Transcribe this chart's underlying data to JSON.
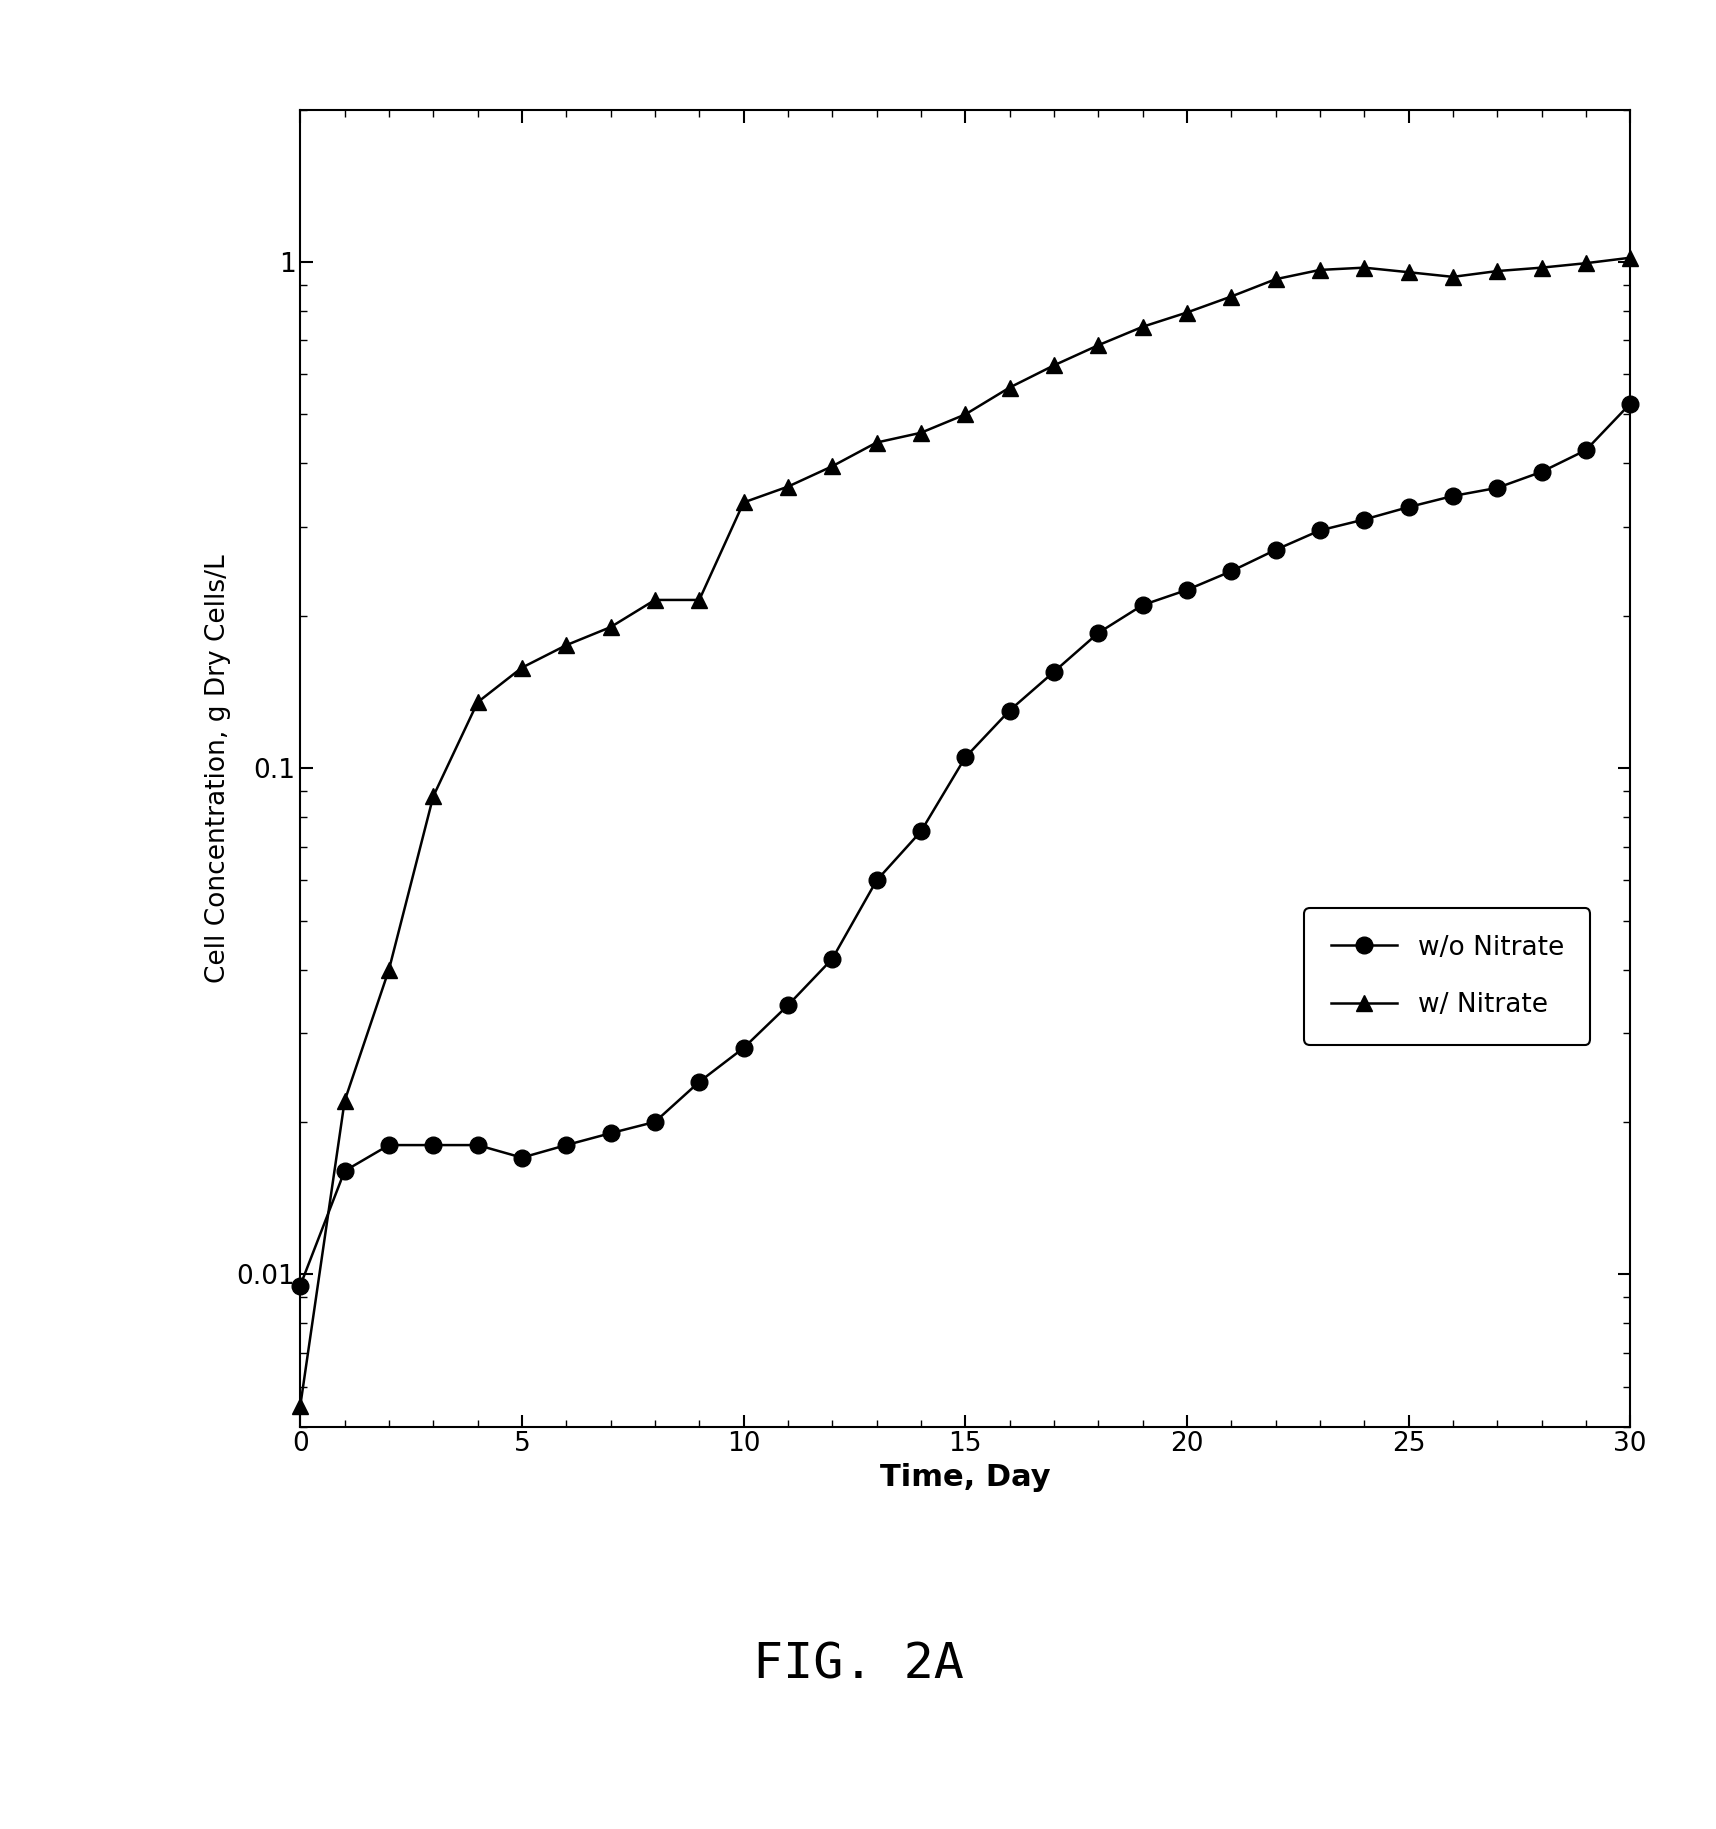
{
  "title": "FIG. 2A",
  "xlabel": "Time, Day",
  "ylabel": "Cell Concentration, g Dry Cells/L",
  "xlim": [
    0,
    30
  ],
  "ylim_log": [
    0.005,
    2.0
  ],
  "xticks": [
    0,
    5,
    10,
    15,
    20,
    25,
    30
  ],
  "yticks": [
    0.01,
    0.1,
    1
  ],
  "wo_nitrate_x": [
    0,
    1,
    2,
    3,
    4,
    5,
    6,
    7,
    8,
    9,
    10,
    11,
    12,
    13,
    14,
    15,
    16,
    17,
    18,
    19,
    20,
    21,
    22,
    23,
    24,
    25,
    26,
    27,
    28,
    29,
    30
  ],
  "wo_nitrate_y": [
    0.0095,
    0.016,
    0.018,
    0.018,
    0.018,
    0.017,
    0.018,
    0.019,
    0.02,
    0.024,
    0.028,
    0.034,
    0.042,
    0.06,
    0.075,
    0.105,
    0.13,
    0.155,
    0.185,
    0.21,
    0.225,
    0.245,
    0.27,
    0.295,
    0.31,
    0.328,
    0.345,
    0.358,
    0.385,
    0.425,
    0.525
  ],
  "w_nitrate_x": [
    0,
    1,
    2,
    3,
    4,
    5,
    6,
    7,
    8,
    9,
    10,
    11,
    12,
    13,
    14,
    15,
    16,
    17,
    18,
    19,
    20,
    21,
    22,
    23,
    24,
    25,
    26,
    27,
    28,
    29,
    30
  ],
  "w_nitrate_y": [
    0.0055,
    0.022,
    0.04,
    0.088,
    0.135,
    0.158,
    0.175,
    0.19,
    0.215,
    0.215,
    0.335,
    0.36,
    0.395,
    0.44,
    0.46,
    0.5,
    0.565,
    0.625,
    0.685,
    0.745,
    0.795,
    0.855,
    0.925,
    0.965,
    0.975,
    0.955,
    0.935,
    0.96,
    0.975,
    0.995,
    1.02
  ],
  "line_color": "#000000",
  "background_color": "#ffffff",
  "marker_circle": "o",
  "marker_triangle": "^",
  "markersize_circle": 12,
  "markersize_triangle": 11,
  "linewidth": 1.8,
  "legend_labels": [
    "w/o Nitrate",
    "w/ Nitrate"
  ],
  "xlabel_fontsize": 22,
  "ylabel_fontsize": 19,
  "tick_fontsize": 19,
  "legend_fontsize": 19,
  "title_fontsize": 36
}
